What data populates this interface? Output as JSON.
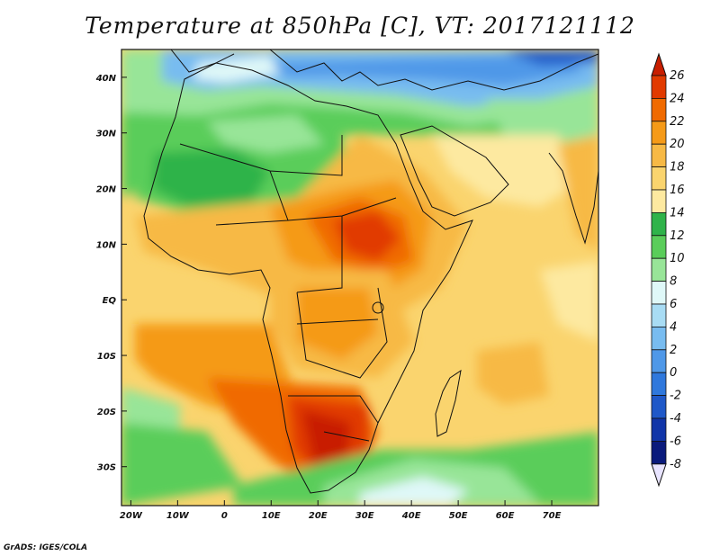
{
  "title": "Temperature at 850hPa [C], VT: 2017121112",
  "footer": "GrADS: IGES/COLA",
  "map": {
    "lon_range": [
      -22,
      80
    ],
    "lat_range": [
      -37,
      45
    ],
    "lon_ticks": [
      {
        "value": -20,
        "label": "20W"
      },
      {
        "value": -10,
        "label": "10W"
      },
      {
        "value": 0,
        "label": "0"
      },
      {
        "value": 10,
        "label": "10E"
      },
      {
        "value": 20,
        "label": "20E"
      },
      {
        "value": 30,
        "label": "30E"
      },
      {
        "value": 40,
        "label": "40E"
      },
      {
        "value": 50,
        "label": "50E"
      },
      {
        "value": 60,
        "label": "60E"
      },
      {
        "value": 70,
        "label": "70E"
      }
    ],
    "lat_ticks": [
      {
        "value": 40,
        "label": "40N"
      },
      {
        "value": 30,
        "label": "30N"
      },
      {
        "value": 20,
        "label": "20N"
      },
      {
        "value": 10,
        "label": "10N"
      },
      {
        "value": 0,
        "label": "EQ"
      },
      {
        "value": -10,
        "label": "10S"
      },
      {
        "value": -20,
        "label": "20S"
      },
      {
        "value": -30,
        "label": "30S"
      }
    ]
  },
  "colorbar": {
    "unit": "C",
    "levels": [
      "26",
      "24",
      "22",
      "20",
      "18",
      "16",
      "14",
      "12",
      "10",
      "8",
      "6",
      "4",
      "2",
      "0",
      "-2",
      "-4",
      "-6",
      "-8"
    ],
    "colors": [
      "#c81e00",
      "#e13a00",
      "#f06a00",
      "#f59a18",
      "#f7b945",
      "#fad46e",
      "#fde9a0",
      "#2fb34a",
      "#5acd5a",
      "#98e598",
      "#dff8f8",
      "#a8dcf4",
      "#78bcf0",
      "#4f98e8",
      "#2f78dc",
      "#1f58c8",
      "#1035a8",
      "#0a1a7c"
    ]
  }
}
